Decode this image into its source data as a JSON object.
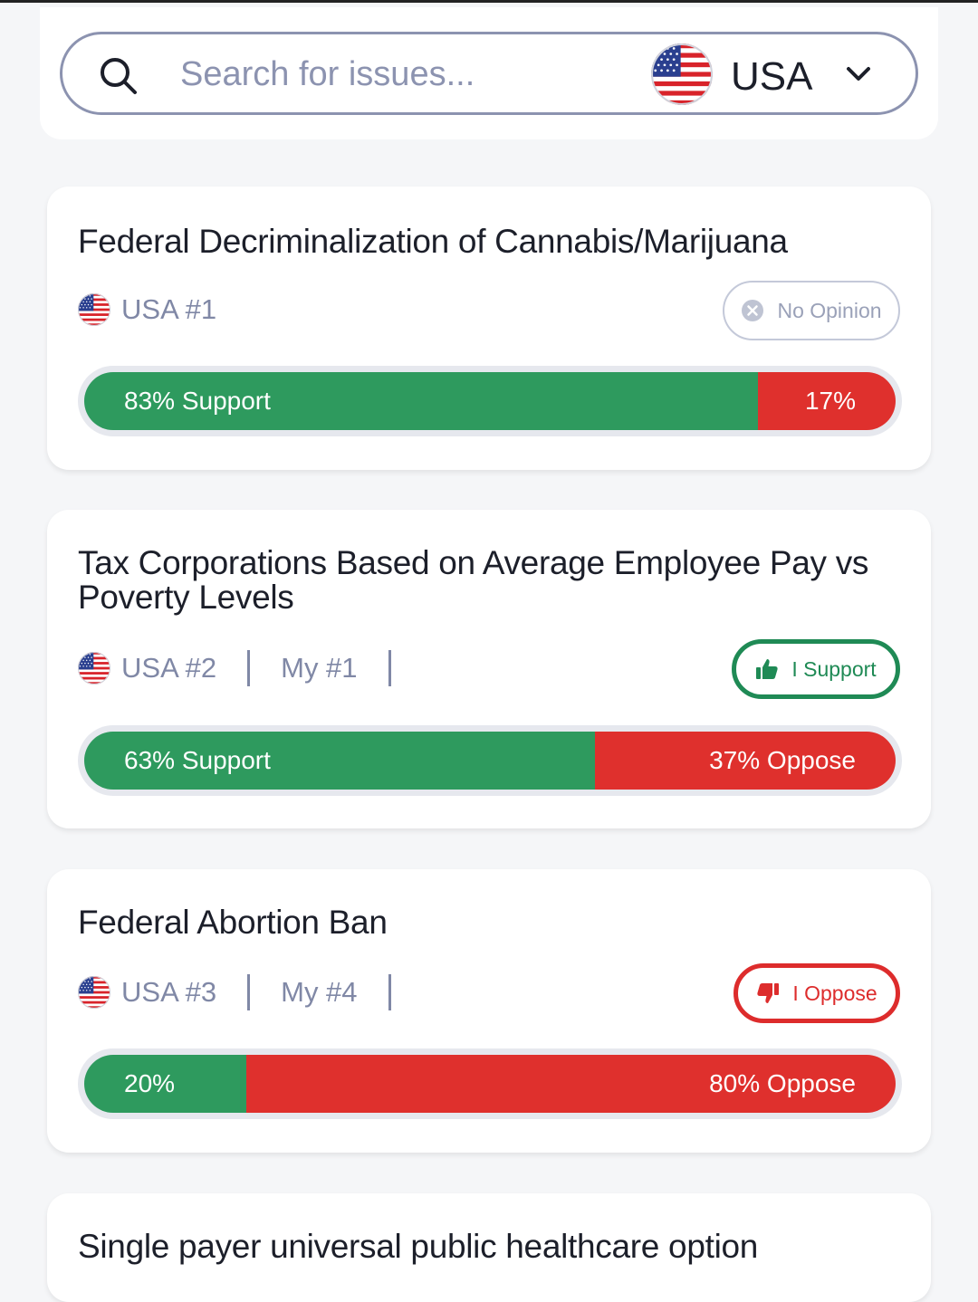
{
  "search": {
    "placeholder": "Search for issues...",
    "country": "USA"
  },
  "issues": [
    {
      "title": "Federal Decriminalization of Cannabis/Marijuana",
      "country_rank": "USA #1",
      "my_rank": "",
      "stance": "No Opinion",
      "stance_type": "neutral",
      "support_pct": 83,
      "oppose_pct": 17,
      "support_label": "83% Support",
      "oppose_label": "17%"
    },
    {
      "title": "Tax Corporations Based on Average Employee Pay vs Poverty Levels",
      "country_rank": "USA #2",
      "my_rank": "My #1",
      "stance": "I Support",
      "stance_type": "support",
      "support_pct": 63,
      "oppose_pct": 37,
      "support_label": "63% Support",
      "oppose_label": "37% Oppose"
    },
    {
      "title": "Federal Abortion Ban",
      "country_rank": "USA #3",
      "my_rank": "My #4",
      "stance": "I Oppose",
      "stance_type": "oppose",
      "support_pct": 20,
      "oppose_pct": 80,
      "support_label": "20%",
      "oppose_label": "80% Oppose"
    },
    {
      "title": "Single payer universal public healthcare option"
    }
  ],
  "colors": {
    "support": "#2e9a5e",
    "oppose": "#df302d",
    "muted": "#8088a6"
  }
}
